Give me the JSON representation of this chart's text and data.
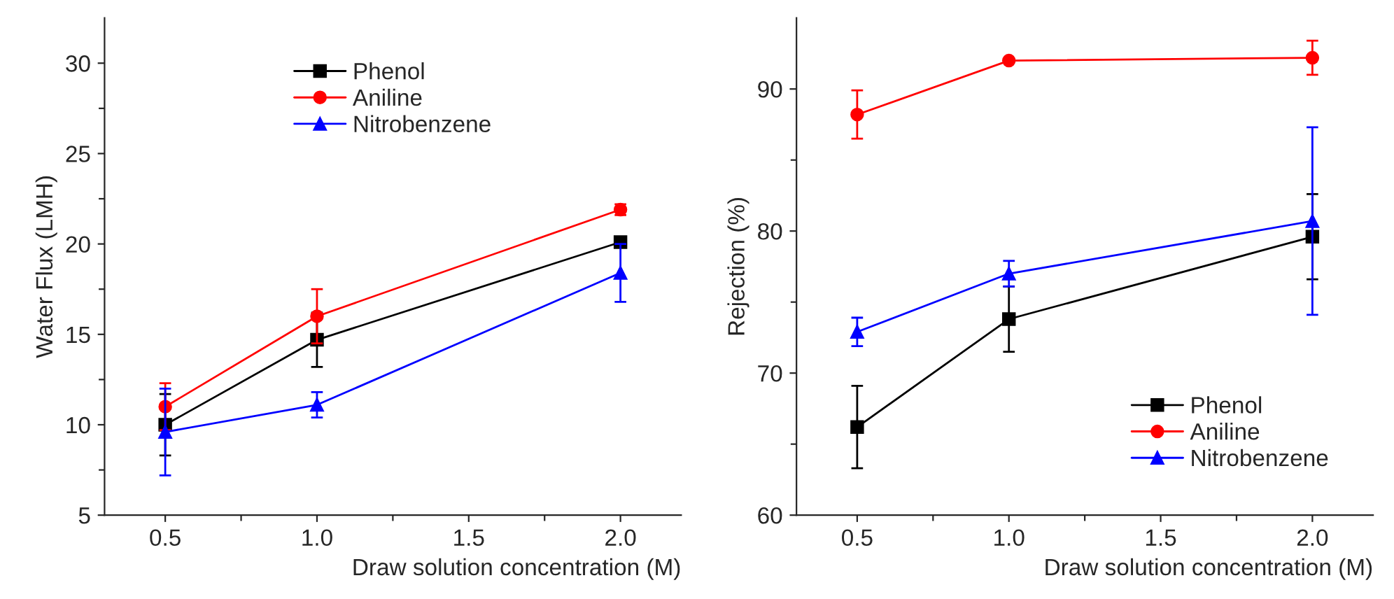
{
  "chart_data": [
    {
      "type": "line",
      "xlabel": "Draw solution concentration (M)",
      "ylabel": "Water Flux (LMH)",
      "x": [
        0.5,
        1.0,
        2.0
      ],
      "xlim": [
        0.3,
        2.2
      ],
      "ylim": [
        5,
        32.5
      ],
      "xticks": [
        {
          "value": 0.5,
          "label": "0.5"
        },
        {
          "value": 0.75,
          "label": null
        },
        {
          "value": 1,
          "label": "1.0"
        },
        {
          "value": 1.25,
          "label": null
        },
        {
          "value": 1.5,
          "label": "1.5"
        },
        {
          "value": 1.75,
          "label": null
        },
        {
          "value": 2,
          "label": "2.0"
        }
      ],
      "yticks": [
        5,
        {
          "value": 7.5,
          "label": null
        },
        10,
        {
          "value": 12.5,
          "label": null
        },
        15,
        {
          "value": 17.5,
          "label": null
        },
        20,
        {
          "value": 22.5,
          "label": null
        },
        25,
        {
          "value": 27.5,
          "label": null
        },
        30
      ],
      "legend": "top",
      "grid": false,
      "series": [
        {
          "name": "Phenol",
          "color": "#000000",
          "marker": "square",
          "values": [
            10.0,
            14.7,
            20.1
          ],
          "errors": [
            1.7,
            1.5,
            0.2
          ]
        },
        {
          "name": "Aniline",
          "color": "#ff0000",
          "marker": "circle",
          "values": [
            11.0,
            16.0,
            21.9
          ],
          "errors": [
            1.3,
            1.5,
            0.3
          ]
        },
        {
          "name": "Nitrobenzene",
          "color": "#0000ff",
          "marker": "triangle",
          "values": [
            9.6,
            11.1,
            18.4
          ],
          "errors": [
            2.4,
            0.7,
            1.6
          ]
        }
      ]
    },
    {
      "type": "line",
      "xlabel": "Draw solution concentration (M)",
      "ylabel": "Rejection (%)",
      "x": [
        0.5,
        1.0,
        2.0
      ],
      "xlim": [
        0.3,
        2.2
      ],
      "ylim": [
        60,
        95
      ],
      "xticks": [
        {
          "value": 0.5,
          "label": "0.5"
        },
        {
          "value": 0.75,
          "label": null
        },
        {
          "value": 1,
          "label": "1.0"
        },
        {
          "value": 1.25,
          "label": null
        },
        {
          "value": 1.5,
          "label": "1.5"
        },
        {
          "value": 1.75,
          "label": null
        },
        {
          "value": 2,
          "label": "2.0"
        }
      ],
      "yticks": [
        60,
        {
          "value": 65,
          "label": null
        },
        70,
        {
          "value": 75,
          "label": null
        },
        80,
        {
          "value": 85,
          "label": null
        },
        90
      ],
      "legend": "bottom right",
      "grid": false,
      "series": [
        {
          "name": "Phenol",
          "color": "#000000",
          "marker": "square",
          "values": [
            66.2,
            73.8,
            79.6
          ],
          "errors": [
            2.9,
            2.3,
            3.0
          ]
        },
        {
          "name": "Aniline",
          "color": "#ff0000",
          "marker": "circle",
          "values": [
            88.2,
            92.0,
            92.2
          ],
          "errors": [
            1.7,
            null,
            1.2
          ]
        },
        {
          "name": "Nitrobenzene",
          "color": "#0000ff",
          "marker": "triangle",
          "values": [
            72.9,
            77.0,
            80.7
          ],
          "errors": [
            1.0,
            0.9,
            6.6
          ]
        }
      ]
    }
  ]
}
